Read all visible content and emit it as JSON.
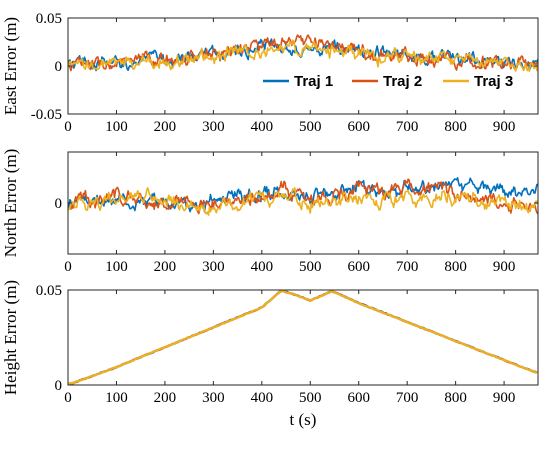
{
  "chart_data": [
    {
      "type": "line",
      "ylabel": "East Error (m)",
      "xlabel": "",
      "xlim": [
        0,
        970
      ],
      "ylim": [
        -0.05,
        0.05
      ],
      "xticks": [
        0,
        100,
        200,
        300,
        400,
        500,
        600,
        700,
        800,
        900
      ],
      "yticks": [
        -0.05,
        0,
        0.05
      ],
      "ytick_labels": [
        "-0.05",
        "0",
        "0.05"
      ],
      "legend": {
        "placement": "inside-right",
        "entries": [
          "Traj 1",
          "Traj 2",
          "Traj 3"
        ]
      },
      "series": [
        {
          "name": "Traj 1",
          "color": "#0072BD",
          "x": [
            0,
            50,
            100,
            150,
            200,
            250,
            300,
            350,
            400,
            450,
            500,
            550,
            600,
            650,
            700,
            750,
            800,
            850,
            900,
            950,
            970
          ],
          "values": [
            0.001,
            0.002,
            0.003,
            0.005,
            0.007,
            0.01,
            0.013,
            0.016,
            0.019,
            0.02,
            0.022,
            0.018,
            0.015,
            0.013,
            0.012,
            0.01,
            0.008,
            0.006,
            0.004,
            0.002,
            0.001
          ]
        },
        {
          "name": "Traj 2",
          "color": "#D95319",
          "x": [
            0,
            50,
            100,
            150,
            200,
            250,
            300,
            350,
            400,
            450,
            500,
            550,
            600,
            650,
            700,
            750,
            800,
            850,
            900,
            950,
            970
          ],
          "values": [
            0.002,
            0.001,
            0.002,
            0.004,
            0.006,
            0.009,
            0.013,
            0.018,
            0.022,
            0.021,
            0.027,
            0.02,
            0.014,
            0.012,
            0.01,
            0.009,
            0.007,
            0.005,
            0.003,
            0.002,
            0.0
          ]
        },
        {
          "name": "Traj 3",
          "color": "#EDB120",
          "x": [
            0,
            50,
            100,
            150,
            200,
            250,
            300,
            350,
            400,
            450,
            500,
            550,
            600,
            650,
            700,
            750,
            800,
            850,
            900,
            950,
            970
          ],
          "values": [
            -0.003,
            0.0,
            0.002,
            0.003,
            0.005,
            0.008,
            0.011,
            0.014,
            0.017,
            0.018,
            0.019,
            0.016,
            0.012,
            0.01,
            0.009,
            0.008,
            0.006,
            0.004,
            0.002,
            0.0,
            -0.002
          ]
        }
      ]
    },
    {
      "type": "line",
      "ylabel": "North Error (m)",
      "xlabel": "",
      "xlim": [
        0,
        970
      ],
      "ylim": [
        -0.05,
        0.05
      ],
      "xticks": [
        0,
        100,
        200,
        300,
        400,
        500,
        600,
        700,
        800,
        900
      ],
      "yticks": [
        0
      ],
      "ytick_labels": [
        "0"
      ],
      "series": [
        {
          "name": "Traj 1",
          "color": "#0072BD",
          "x": [
            0,
            50,
            100,
            150,
            200,
            250,
            300,
            350,
            400,
            450,
            500,
            550,
            600,
            650,
            700,
            750,
            800,
            850,
            900,
            950,
            970
          ],
          "values": [
            0.0,
            0.003,
            0.004,
            0.002,
            0.0,
            -0.002,
            0.002,
            0.005,
            0.01,
            0.012,
            0.008,
            0.012,
            0.015,
            0.015,
            0.013,
            0.016,
            0.018,
            0.017,
            0.015,
            0.01,
            0.008
          ]
        },
        {
          "name": "Traj 2",
          "color": "#D95319",
          "x": [
            0,
            50,
            100,
            150,
            200,
            250,
            300,
            350,
            400,
            450,
            500,
            550,
            600,
            650,
            700,
            750,
            800,
            850,
            900,
            950,
            970
          ],
          "values": [
            0.0,
            0.004,
            0.008,
            0.003,
            0.0,
            -0.001,
            0.0,
            0.004,
            0.01,
            0.014,
            0.0,
            0.008,
            0.012,
            0.01,
            0.015,
            0.014,
            0.01,
            0.006,
            0.0,
            -0.004,
            -0.01
          ]
        },
        {
          "name": "Traj 3",
          "color": "#EDB120",
          "x": [
            0,
            50,
            100,
            150,
            200,
            250,
            300,
            350,
            400,
            450,
            500,
            550,
            600,
            650,
            700,
            750,
            800,
            850,
            900,
            950,
            970
          ],
          "values": [
            -0.002,
            0.0,
            0.003,
            0.005,
            0.002,
            -0.003,
            -0.004,
            0.0,
            0.006,
            0.01,
            -0.002,
            0.002,
            0.006,
            0.005,
            0.004,
            0.006,
            0.005,
            0.004,
            0.002,
            -0.002,
            -0.004
          ]
        }
      ]
    },
    {
      "type": "line",
      "ylabel": "Height Error (m)",
      "xlabel": "t (s)",
      "xlim": [
        0,
        970
      ],
      "ylim": [
        0,
        0.05
      ],
      "xticks": [
        0,
        100,
        200,
        300,
        400,
        500,
        600,
        700,
        800,
        900
      ],
      "yticks": [
        0,
        0.05
      ],
      "ytick_labels": [
        "0",
        "0.05"
      ],
      "series": [
        {
          "name": "Traj 1",
          "color": "#0072BD",
          "x": [
            0,
            10,
            100,
            200,
            300,
            400,
            440,
            470,
            500,
            530,
            545,
            600,
            700,
            800,
            900,
            960,
            970
          ],
          "values": [
            0.0005,
            0.001,
            0.0094,
            0.0199,
            0.0303,
            0.0408,
            0.0497,
            0.0475,
            0.0445,
            0.0478,
            0.0495,
            0.0432,
            0.0332,
            0.0232,
            0.0132,
            0.0072,
            0.0063
          ]
        },
        {
          "name": "Traj 2",
          "color": "#D95319",
          "x": [
            0,
            10,
            100,
            200,
            300,
            400,
            440,
            470,
            500,
            530,
            545,
            600,
            700,
            800,
            900,
            960,
            970
          ],
          "values": [
            0.0005,
            0.001,
            0.0094,
            0.0199,
            0.0303,
            0.0408,
            0.0496,
            0.0474,
            0.0444,
            0.0477,
            0.0494,
            0.0431,
            0.0331,
            0.0231,
            0.0131,
            0.0071,
            0.0062
          ]
        },
        {
          "name": "Traj 3",
          "color": "#EDB120",
          "x": [
            0,
            10,
            100,
            200,
            300,
            400,
            440,
            470,
            500,
            530,
            545,
            600,
            700,
            800,
            900,
            960,
            970
          ],
          "values": [
            0.0005,
            0.001,
            0.0094,
            0.0199,
            0.0303,
            0.0408,
            0.0496,
            0.0474,
            0.0444,
            0.0477,
            0.0494,
            0.0431,
            0.0331,
            0.0231,
            0.0131,
            0.0071,
            0.0062
          ]
        }
      ]
    }
  ]
}
